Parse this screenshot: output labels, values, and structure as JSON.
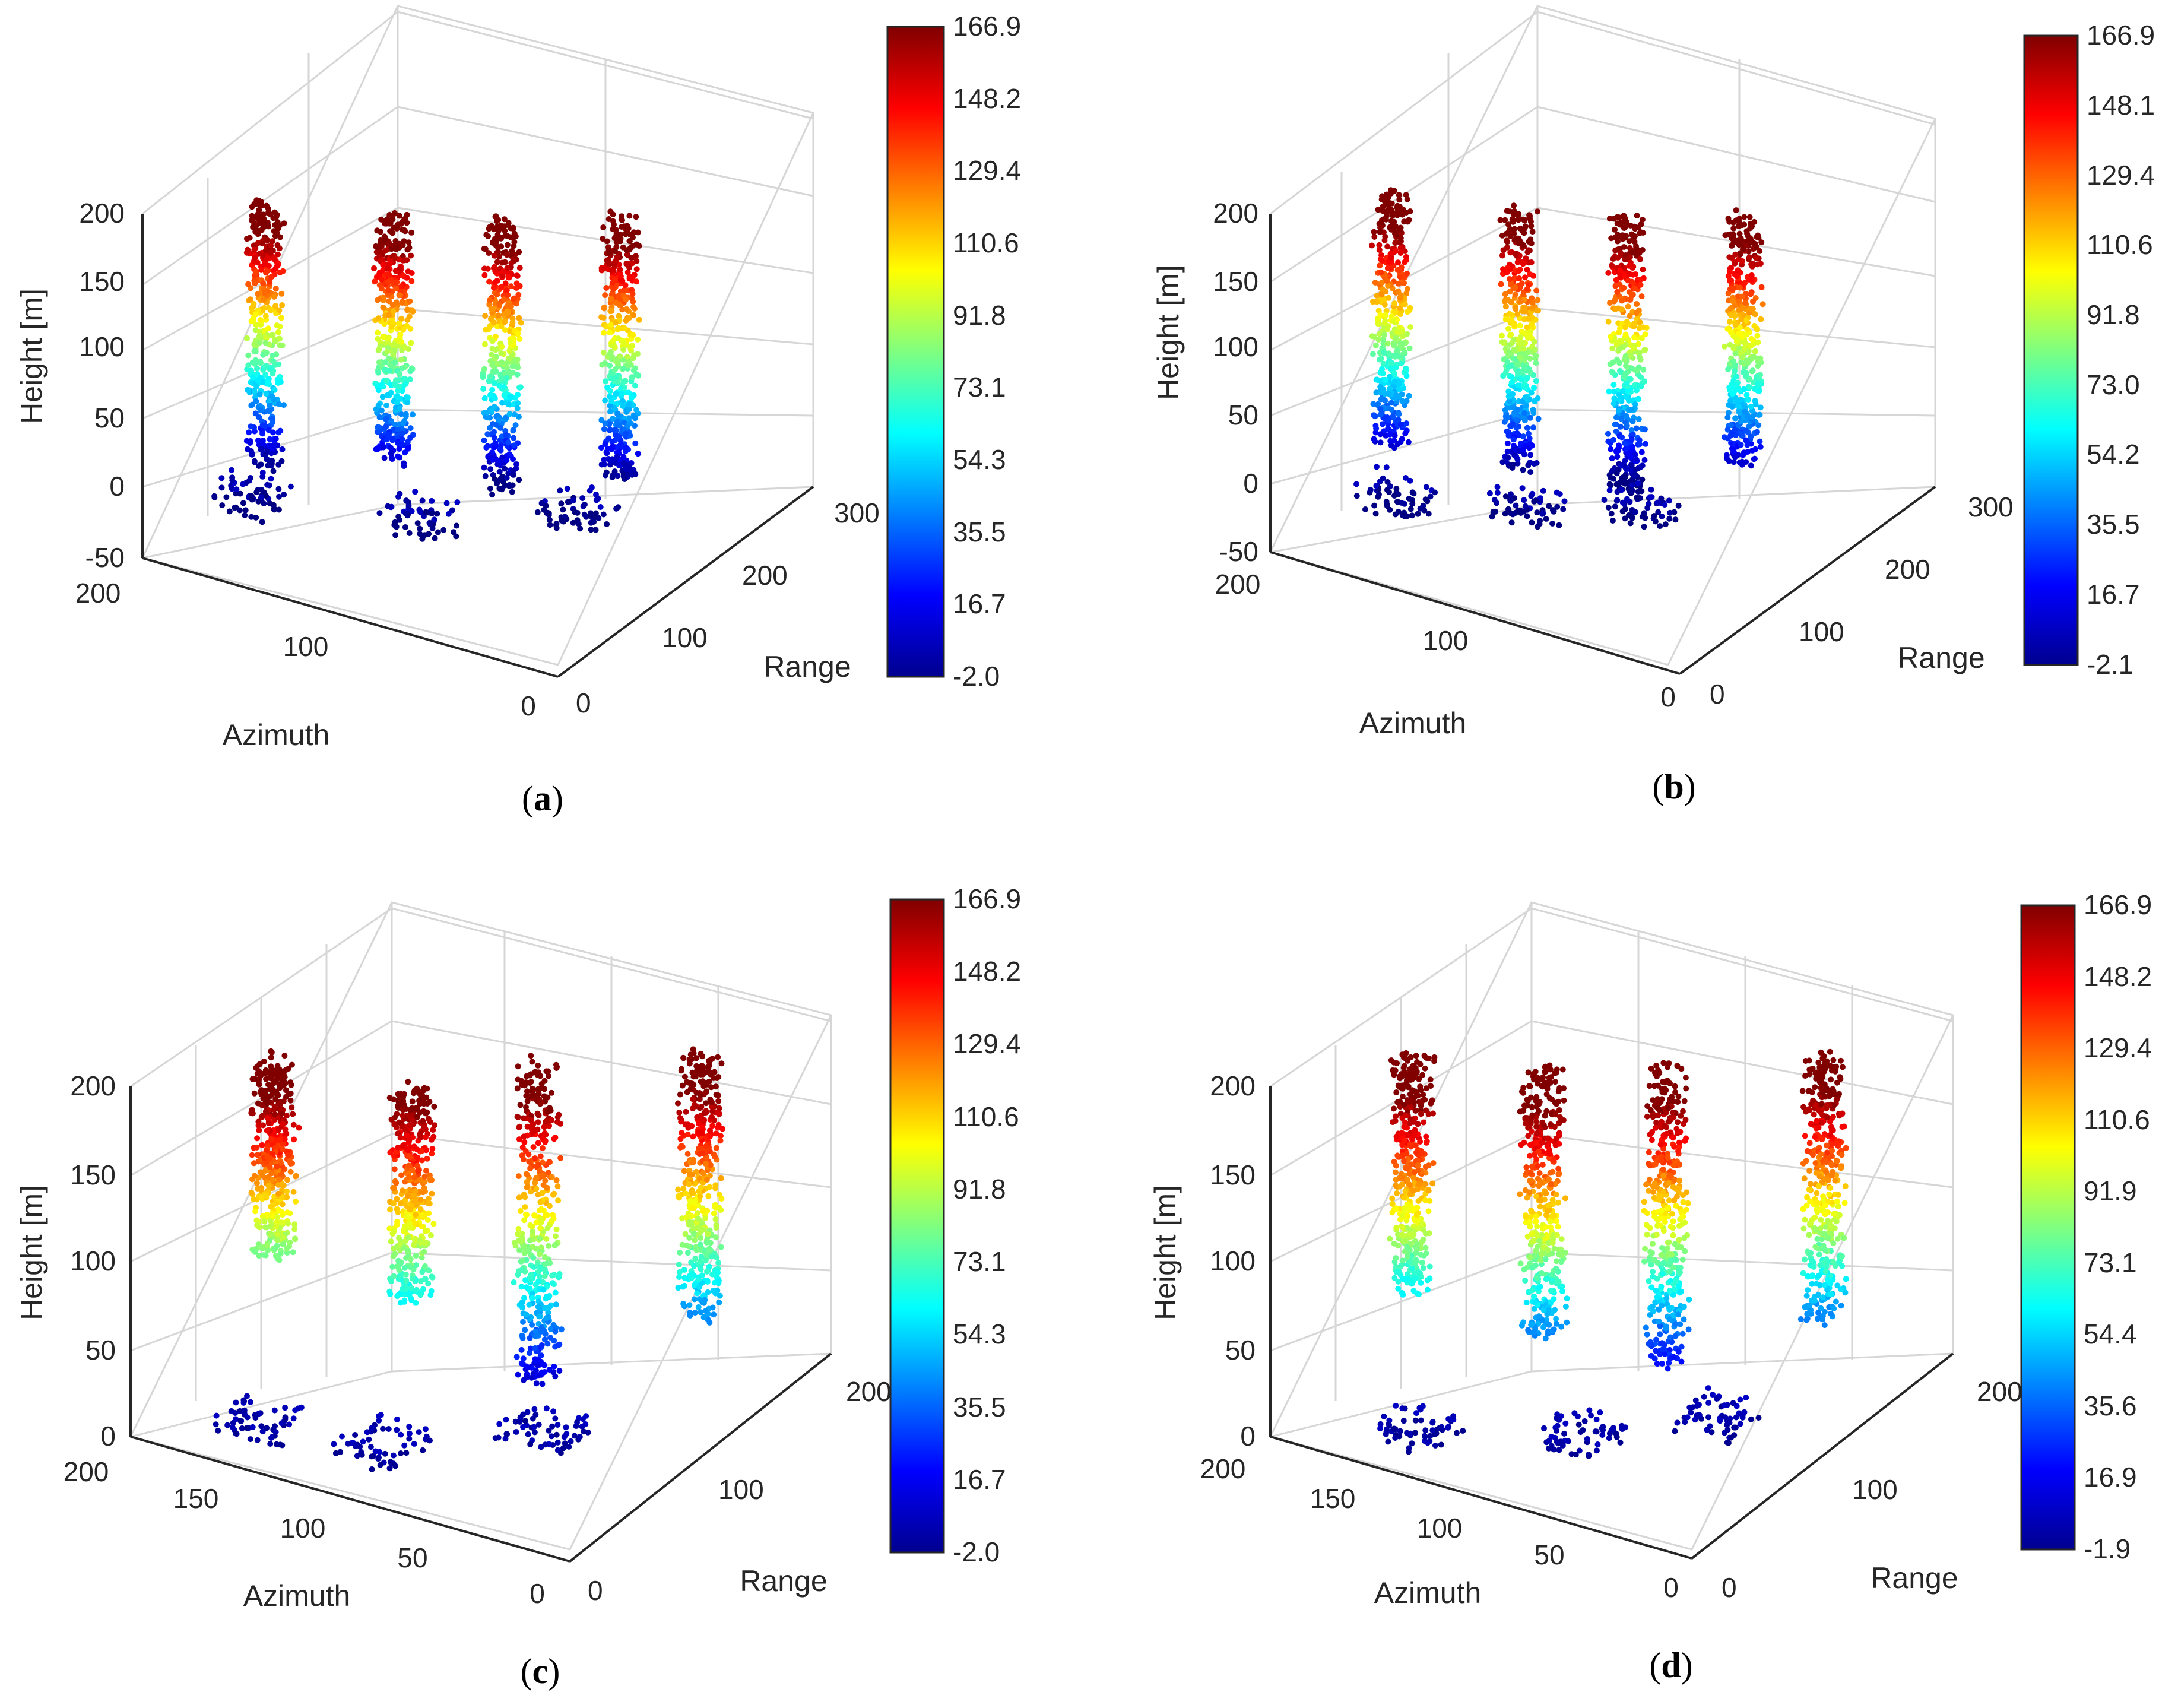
{
  "chart_data": [
    {
      "type": "scatter",
      "panel_label": "(a)",
      "letter": "a",
      "xlabel": "Azimuth",
      "ylabel": "Range",
      "zlabel": "Height [m]",
      "azimuth_ticks": [
        "200",
        "100",
        "0"
      ],
      "range_ticks": [
        "0",
        "100",
        "200",
        "300"
      ],
      "height_ticks": [
        "-50",
        "0",
        "50",
        "100",
        "150",
        "200"
      ],
      "azimuth_range": [
        0,
        200
      ],
      "range_range": [
        0,
        300
      ],
      "height_range": [
        -50,
        200
      ],
      "colorbar_ticks": [
        "166.9",
        "148.2",
        "129.4",
        "110.6",
        "91.8",
        "73.1",
        "54.3",
        "35.5",
        "16.7",
        "-2.0"
      ],
      "colorbar_range": [
        -2.0,
        166.9
      ],
      "colormap": "jet",
      "series": [
        {
          "name": "",
          "type": "building",
          "azimuth": 170,
          "range": 70,
          "height_range": [
            0,
            190
          ]
        },
        {
          "name": "",
          "type": "building",
          "azimuth": 120,
          "range": 100,
          "height_range": [
            10,
            190
          ]
        },
        {
          "name": "",
          "type": "building",
          "azimuth": 80,
          "range": 130,
          "height_range": [
            -10,
            190
          ]
        },
        {
          "name": "",
          "type": "building",
          "azimuth": 40,
          "range": 170,
          "height_range": [
            0,
            190
          ]
        },
        {
          "name": "",
          "type": "ground",
          "azimuth": 160,
          "range": 30,
          "height_range": [
            -10,
            10
          ]
        },
        {
          "name": "",
          "type": "ground",
          "azimuth": 90,
          "range": 60,
          "height_range": [
            -10,
            10
          ]
        },
        {
          "name": "",
          "type": "ground",
          "azimuth": 40,
          "range": 120,
          "height_range": [
            -10,
            10
          ]
        }
      ]
    },
    {
      "type": "scatter",
      "panel_label": "(b)",
      "letter": "b",
      "xlabel": "Azimuth",
      "ylabel": "Range",
      "zlabel": "Height [m]",
      "azimuth_ticks": [
        "200",
        "100",
        "0"
      ],
      "range_ticks": [
        "0",
        "100",
        "200",
        "300"
      ],
      "height_ticks": [
        "-50",
        "0",
        "50",
        "100",
        "150",
        "200"
      ],
      "azimuth_range": [
        0,
        200
      ],
      "range_range": [
        0,
        300
      ],
      "height_range": [
        -50,
        200
      ],
      "colorbar_ticks": [
        "166.9",
        "148.1",
        "129.4",
        "110.6",
        "91.8",
        "73.0",
        "54.2",
        "35.5",
        "16.7",
        "-2.1"
      ],
      "colorbar_range": [
        -2.1,
        166.9
      ],
      "colormap": "jet",
      "series": [
        {
          "name": "",
          "type": "building",
          "azimuth": 170,
          "range": 70,
          "height_range": [
            10,
            195
          ]
        },
        {
          "name": "",
          "type": "building",
          "azimuth": 120,
          "range": 100,
          "height_range": [
            0,
            190
          ]
        },
        {
          "name": "",
          "type": "building",
          "azimuth": 80,
          "range": 130,
          "height_range": [
            -10,
            190
          ]
        },
        {
          "name": "",
          "type": "building",
          "azimuth": 40,
          "range": 170,
          "height_range": [
            10,
            190
          ]
        },
        {
          "name": "",
          "type": "ground",
          "azimuth": 150,
          "range": 30,
          "height_range": [
            -10,
            10
          ]
        },
        {
          "name": "",
          "type": "ground",
          "azimuth": 100,
          "range": 60,
          "height_range": [
            -10,
            10
          ]
        },
        {
          "name": "",
          "type": "ground",
          "azimuth": 60,
          "range": 100,
          "height_range": [
            -10,
            10
          ]
        }
      ]
    },
    {
      "type": "scatter",
      "panel_label": "(c)",
      "letter": "c",
      "xlabel": "Azimuth",
      "ylabel": "Range",
      "zlabel": "Height [m]",
      "azimuth_ticks": [
        "200",
        "150",
        "100",
        "50",
        "0"
      ],
      "range_ticks": [
        "0",
        "100",
        "200"
      ],
      "height_ticks": [
        "0",
        "50",
        "100",
        "150",
        "200"
      ],
      "azimuth_range": [
        0,
        200
      ],
      "range_range": [
        0,
        200
      ],
      "height_range": [
        0,
        200
      ],
      "colorbar_ticks": [
        "166.9",
        "148.2",
        "129.4",
        "110.6",
        "91.8",
        "73.1",
        "54.3",
        "35.5",
        "16.7",
        "-2.0"
      ],
      "colorbar_range": [
        -2.0,
        166.9
      ],
      "colormap": "jet",
      "series": [
        {
          "name": "",
          "type": "building",
          "azimuth": 170,
          "range": 60,
          "height_range": [
            80,
            190
          ]
        },
        {
          "name": "",
          "type": "building",
          "azimuth": 120,
          "range": 80,
          "height_range": [
            60,
            180
          ]
        },
        {
          "name": "",
          "type": "building",
          "azimuth": 80,
          "range": 110,
          "height_range": [
            10,
            190
          ]
        },
        {
          "name": "",
          "type": "building",
          "azimuth": 30,
          "range": 150,
          "height_range": [
            40,
            190
          ]
        },
        {
          "name": "",
          "type": "ground",
          "azimuth": 160,
          "range": 30,
          "height_range": [
            0,
            10
          ]
        },
        {
          "name": "",
          "type": "ground",
          "azimuth": 110,
          "range": 40,
          "height_range": [
            0,
            10
          ]
        },
        {
          "name": "",
          "type": "ground",
          "azimuth": 60,
          "range": 80,
          "height_range": [
            0,
            10
          ]
        }
      ]
    },
    {
      "type": "scatter",
      "panel_label": "(d)",
      "letter": "d",
      "xlabel": "Azimuth",
      "ylabel": "Range",
      "zlabel": "Height [m]",
      "azimuth_ticks": [
        "200",
        "150",
        "100",
        "50",
        "0"
      ],
      "range_ticks": [
        "0",
        "100",
        "200"
      ],
      "height_ticks": [
        "0",
        "50",
        "100",
        "150",
        "200"
      ],
      "azimuth_range": [
        0,
        200
      ],
      "range_range": [
        0,
        200
      ],
      "height_range": [
        0,
        200
      ],
      "colorbar_ticks": [
        "166.9",
        "148.2",
        "129.4",
        "110.6",
        "91.9",
        "73.1",
        "54.4",
        "35.6",
        "16.9",
        "-1.9"
      ],
      "colorbar_range": [
        -1.9,
        166.9
      ],
      "colormap": "jet",
      "series": [
        {
          "name": "",
          "type": "building",
          "azimuth": 170,
          "range": 60,
          "height_range": [
            60,
            195
          ]
        },
        {
          "name": "",
          "type": "building",
          "azimuth": 120,
          "range": 80,
          "height_range": [
            40,
            190
          ]
        },
        {
          "name": "",
          "type": "building",
          "azimuth": 80,
          "range": 110,
          "height_range": [
            20,
            190
          ]
        },
        {
          "name": "",
          "type": "building",
          "azimuth": 30,
          "range": 150,
          "height_range": [
            40,
            190
          ]
        },
        {
          "name": "",
          "type": "ground",
          "azimuth": 150,
          "range": 30,
          "height_range": [
            0,
            10
          ]
        },
        {
          "name": "",
          "type": "ground",
          "azimuth": 90,
          "range": 60,
          "height_range": [
            0,
            10
          ]
        },
        {
          "name": "",
          "type": "ground",
          "azimuth": 50,
          "range": 100,
          "height_range": [
            0,
            10
          ]
        }
      ]
    }
  ]
}
